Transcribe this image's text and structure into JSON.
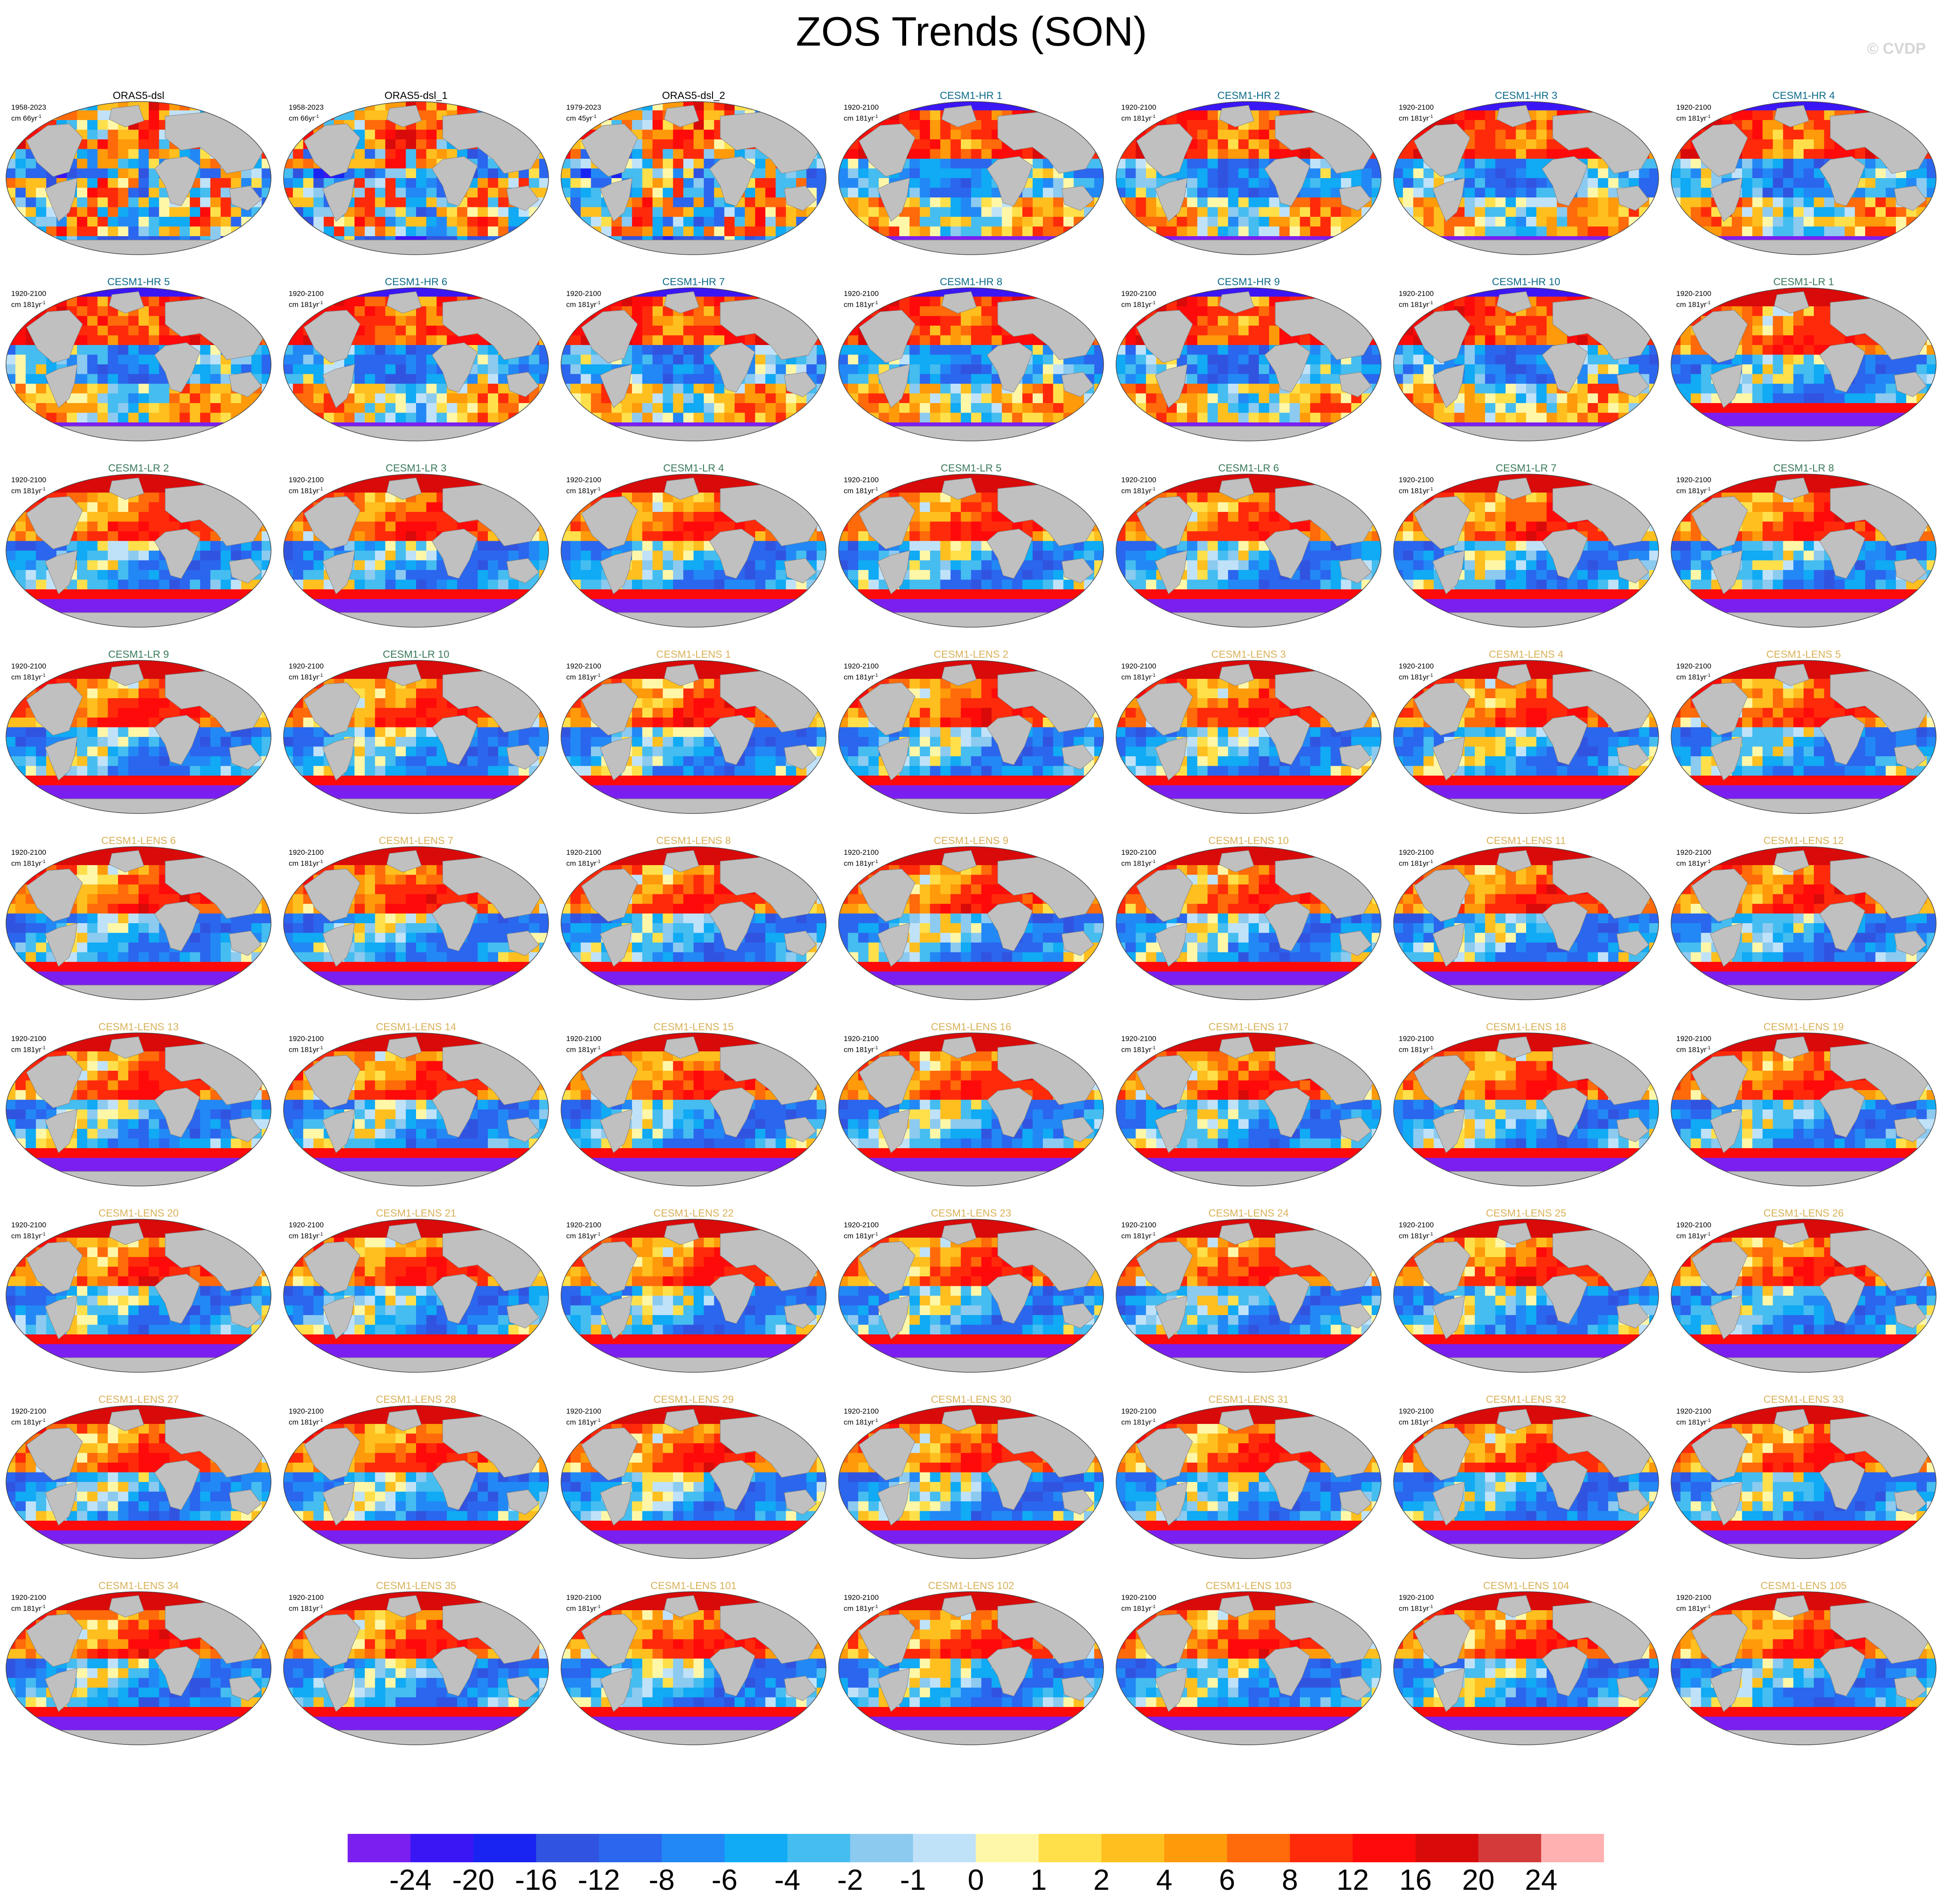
{
  "title": "ZOS Trends (SON)",
  "watermark": "© CVDP",
  "panels": [
    {
      "title": "ORAS5-dsl",
      "period": "1958-2023",
      "units": "cm 66yr",
      "kind": "obs"
    },
    {
      "title": "ORAS5-dsl_1",
      "period": "1958-2023",
      "units": "cm 66yr",
      "kind": "obs"
    },
    {
      "title": "ORAS5-dsl_2",
      "period": "1979-2023",
      "units": "cm 45yr",
      "kind": "obs2"
    },
    {
      "title": "CESM1-HR 1",
      "period": "1920-2100",
      "units": "cm 181yr",
      "kind": "hr"
    },
    {
      "title": "CESM1-HR 2",
      "period": "1920-2100",
      "units": "cm 181yr",
      "kind": "hr"
    },
    {
      "title": "CESM1-HR 3",
      "period": "1920-2100",
      "units": "cm 181yr",
      "kind": "hr"
    },
    {
      "title": "CESM1-HR 4",
      "period": "1920-2100",
      "units": "cm 181yr",
      "kind": "hr"
    },
    {
      "title": "CESM1-HR 5",
      "period": "1920-2100",
      "units": "cm 181yr",
      "kind": "hr"
    },
    {
      "title": "CESM1-HR 6",
      "period": "1920-2100",
      "units": "cm 181yr",
      "kind": "hr"
    },
    {
      "title": "CESM1-HR 7",
      "period": "1920-2100",
      "units": "cm 181yr",
      "kind": "hr"
    },
    {
      "title": "CESM1-HR 8",
      "period": "1920-2100",
      "units": "cm 181yr",
      "kind": "hr"
    },
    {
      "title": "CESM1-HR 9",
      "period": "1920-2100",
      "units": "cm 181yr",
      "kind": "hr"
    },
    {
      "title": "CESM1-HR 10",
      "period": "1920-2100",
      "units": "cm 181yr",
      "kind": "hr"
    },
    {
      "title": "CESM1-LR 1",
      "period": "1920-2100",
      "units": "cm 181yr",
      "kind": "lr"
    },
    {
      "title": "CESM1-LR 2",
      "period": "1920-2100",
      "units": "cm 181yr",
      "kind": "lr"
    },
    {
      "title": "CESM1-LR 3",
      "period": "1920-2100",
      "units": "cm 181yr",
      "kind": "lr"
    },
    {
      "title": "CESM1-LR 4",
      "period": "1920-2100",
      "units": "cm 181yr",
      "kind": "lr"
    },
    {
      "title": "CESM1-LR 5",
      "period": "1920-2100",
      "units": "cm 181yr",
      "kind": "lr"
    },
    {
      "title": "CESM1-LR 6",
      "period": "1920-2100",
      "units": "cm 181yr",
      "kind": "lr"
    },
    {
      "title": "CESM1-LR 7",
      "period": "1920-2100",
      "units": "cm 181yr",
      "kind": "lr"
    },
    {
      "title": "CESM1-LR 8",
      "period": "1920-2100",
      "units": "cm 181yr",
      "kind": "lr"
    },
    {
      "title": "CESM1-LR 9",
      "period": "1920-2100",
      "units": "cm 181yr",
      "kind": "lr"
    },
    {
      "title": "CESM1-LR 10",
      "period": "1920-2100",
      "units": "cm 181yr",
      "kind": "lr"
    },
    {
      "title": "CESM1-LENS 1",
      "period": "1920-2100",
      "units": "cm 181yr",
      "kind": "lens"
    },
    {
      "title": "CESM1-LENS 2",
      "period": "1920-2100",
      "units": "cm 181yr",
      "kind": "lens"
    },
    {
      "title": "CESM1-LENS 3",
      "period": "1920-2100",
      "units": "cm 181yr",
      "kind": "lens"
    },
    {
      "title": "CESM1-LENS 4",
      "period": "1920-2100",
      "units": "cm 181yr",
      "kind": "lens"
    },
    {
      "title": "CESM1-LENS 5",
      "period": "1920-2100",
      "units": "cm 181yr",
      "kind": "lens"
    },
    {
      "title": "CESM1-LENS 6",
      "period": "1920-2100",
      "units": "cm 181yr",
      "kind": "lens"
    },
    {
      "title": "CESM1-LENS 7",
      "period": "1920-2100",
      "units": "cm 181yr",
      "kind": "lens"
    },
    {
      "title": "CESM1-LENS 8",
      "period": "1920-2100",
      "units": "cm 181yr",
      "kind": "lens"
    },
    {
      "title": "CESM1-LENS 9",
      "period": "1920-2100",
      "units": "cm 181yr",
      "kind": "lens"
    },
    {
      "title": "CESM1-LENS 10",
      "period": "1920-2100",
      "units": "cm 181yr",
      "kind": "lens"
    },
    {
      "title": "CESM1-LENS 11",
      "period": "1920-2100",
      "units": "cm 181yr",
      "kind": "lens"
    },
    {
      "title": "CESM1-LENS 12",
      "period": "1920-2100",
      "units": "cm 181yr",
      "kind": "lens"
    },
    {
      "title": "CESM1-LENS 13",
      "period": "1920-2100",
      "units": "cm 181yr",
      "kind": "lens"
    },
    {
      "title": "CESM1-LENS 14",
      "period": "1920-2100",
      "units": "cm 181yr",
      "kind": "lens"
    },
    {
      "title": "CESM1-LENS 15",
      "period": "1920-2100",
      "units": "cm 181yr",
      "kind": "lens"
    },
    {
      "title": "CESM1-LENS 16",
      "period": "1920-2100",
      "units": "cm 181yr",
      "kind": "lens"
    },
    {
      "title": "CESM1-LENS 17",
      "period": "1920-2100",
      "units": "cm 181yr",
      "kind": "lens"
    },
    {
      "title": "CESM1-LENS 18",
      "period": "1920-2100",
      "units": "cm 181yr",
      "kind": "lens"
    },
    {
      "title": "CESM1-LENS 19",
      "period": "1920-2100",
      "units": "cm 181yr",
      "kind": "lens"
    },
    {
      "title": "CESM1-LENS 20",
      "period": "1920-2100",
      "units": "cm 181yr",
      "kind": "lens"
    },
    {
      "title": "CESM1-LENS 21",
      "period": "1920-2100",
      "units": "cm 181yr",
      "kind": "lens"
    },
    {
      "title": "CESM1-LENS 22",
      "period": "1920-2100",
      "units": "cm 181yr",
      "kind": "lens"
    },
    {
      "title": "CESM1-LENS 23",
      "period": "1920-2100",
      "units": "cm 181yr",
      "kind": "lens"
    },
    {
      "title": "CESM1-LENS 24",
      "period": "1920-2100",
      "units": "cm 181yr",
      "kind": "lens"
    },
    {
      "title": "CESM1-LENS 25",
      "period": "1920-2100",
      "units": "cm 181yr",
      "kind": "lens"
    },
    {
      "title": "CESM1-LENS 26",
      "period": "1920-2100",
      "units": "cm 181yr",
      "kind": "lens"
    },
    {
      "title": "CESM1-LENS 27",
      "period": "1920-2100",
      "units": "cm 181yr",
      "kind": "lens"
    },
    {
      "title": "CESM1-LENS 28",
      "period": "1920-2100",
      "units": "cm 181yr",
      "kind": "lens"
    },
    {
      "title": "CESM1-LENS 29",
      "period": "1920-2100",
      "units": "cm 181yr",
      "kind": "lens"
    },
    {
      "title": "CESM1-LENS 30",
      "period": "1920-2100",
      "units": "cm 181yr",
      "kind": "lens"
    },
    {
      "title": "CESM1-LENS 31",
      "period": "1920-2100",
      "units": "cm 181yr",
      "kind": "lens"
    },
    {
      "title": "CESM1-LENS 32",
      "period": "1920-2100",
      "units": "cm 181yr",
      "kind": "lens"
    },
    {
      "title": "CESM1-LENS 33",
      "period": "1920-2100",
      "units": "cm 181yr",
      "kind": "lens"
    },
    {
      "title": "CESM1-LENS 34",
      "period": "1920-2100",
      "units": "cm 181yr",
      "kind": "lens"
    },
    {
      "title": "CESM1-LENS 35",
      "period": "1920-2100",
      "units": "cm 181yr",
      "kind": "lens"
    },
    {
      "title": "CESM1-LENS 101",
      "period": "1920-2100",
      "units": "cm 181yr",
      "kind": "lens"
    },
    {
      "title": "CESM1-LENS 102",
      "period": "1920-2100",
      "units": "cm 181yr",
      "kind": "lens"
    },
    {
      "title": "CESM1-LENS 103",
      "period": "1920-2100",
      "units": "cm 181yr",
      "kind": "lens"
    },
    {
      "title": "CESM1-LENS 104",
      "period": "1920-2100",
      "units": "cm 181yr",
      "kind": "lens"
    },
    {
      "title": "CESM1-LENS 105",
      "period": "1920-2100",
      "units": "cm 181yr",
      "kind": "lens"
    }
  ],
  "units_exponent": "-1",
  "title_colors": {
    "obs": "#000000",
    "obs2": "#000000",
    "hr": "#0d6b8a",
    "lr": "#3a7a5a",
    "lens": "#d9b25a"
  },
  "colorbar": {
    "colors": [
      "#7b1ff0",
      "#3b16f5",
      "#1a24f2",
      "#3154e0",
      "#2b66ee",
      "#2288f5",
      "#10aaf5",
      "#45bdf0",
      "#8ccaf0",
      "#c0e2f8",
      "#fff7a8",
      "#ffe04a",
      "#ffbf1f",
      "#ff9a0a",
      "#ff6a0a",
      "#ff2a0a",
      "#ff0a0a",
      "#d90a0a",
      "#d43a3a",
      "#ffb0b0"
    ],
    "labels": [
      "-24",
      "-20",
      "-16",
      "-12",
      "-8",
      "-6",
      "-4",
      "-2",
      "-1",
      "0",
      "1",
      "2",
      "4",
      "6",
      "8",
      "12",
      "16",
      "20",
      "24"
    ]
  },
  "land_color": "#c0c0c0"
}
